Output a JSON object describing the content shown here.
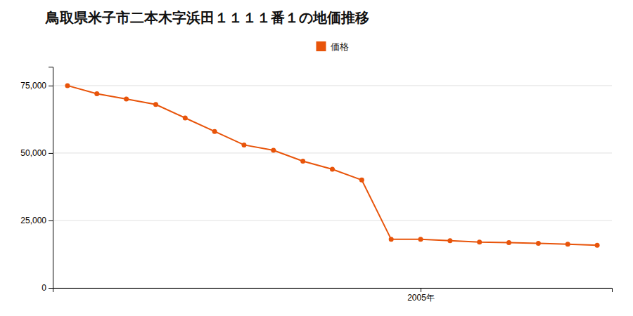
{
  "chart_data": {
    "type": "line",
    "title": "鳥取県米子市二本木字浜田１１１１番１の地価推移",
    "x": [
      1993,
      1994,
      1995,
      1996,
      1997,
      1998,
      1999,
      2000,
      2001,
      2002,
      2003,
      2004,
      2005,
      2006,
      2007,
      2008,
      2009,
      2010,
      2011
    ],
    "series": [
      {
        "name": "価格",
        "color": "#e8540a",
        "marker": "circle",
        "values": [
          75000,
          72000,
          70000,
          68000,
          63000,
          58000,
          53000,
          51000,
          47000,
          44000,
          40000,
          18000,
          18000,
          17500,
          17000,
          16800,
          16500,
          16200,
          15800
        ]
      }
    ],
    "xlim": [
      1992.5,
      2011.5
    ],
    "xticks": [
      {
        "value": 2005,
        "label": "2005年"
      }
    ],
    "ylim": [
      0,
      82000
    ],
    "yticks": [
      0,
      {
        "value": 25000,
        "label": "25,000"
      },
      {
        "value": 50000,
        "label": "50,000"
      },
      {
        "value": 75000,
        "label": "75,000"
      }
    ],
    "grid": true
  }
}
